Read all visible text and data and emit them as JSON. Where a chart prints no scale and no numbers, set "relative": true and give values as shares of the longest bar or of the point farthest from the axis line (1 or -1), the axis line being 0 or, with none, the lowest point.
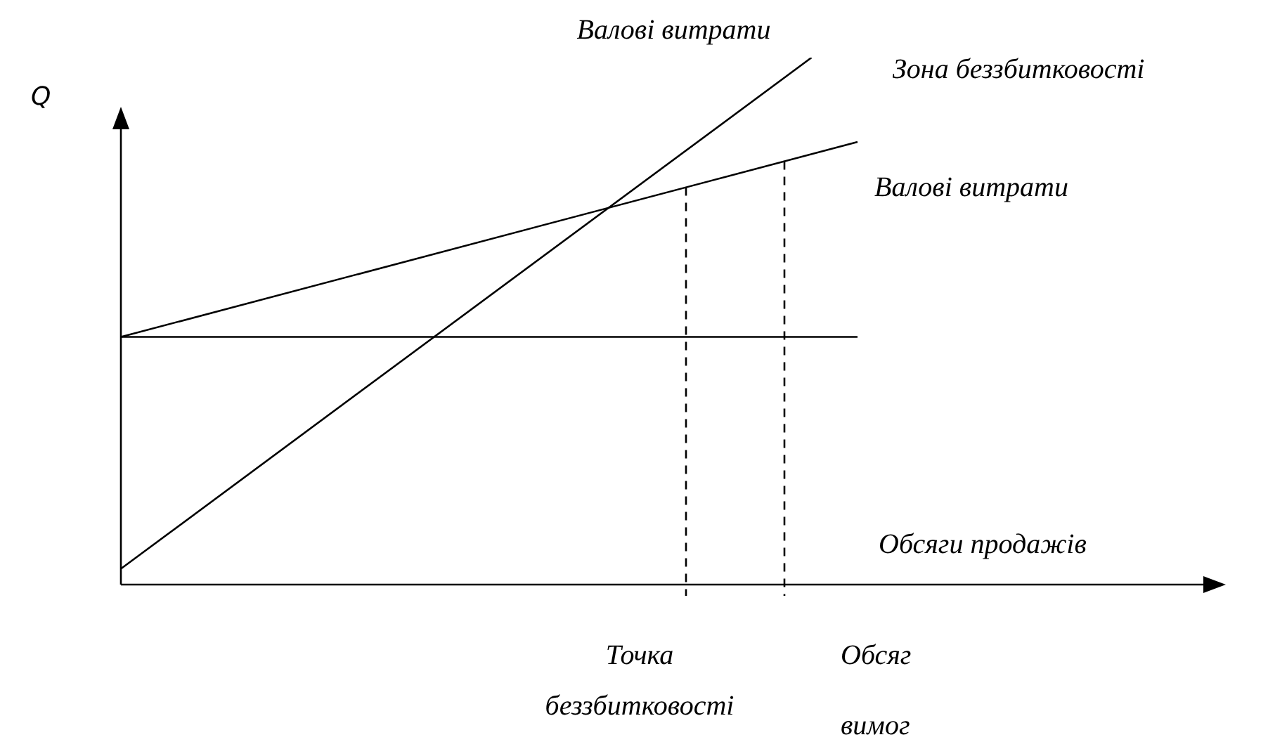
{
  "chart_data": {
    "type": "line",
    "relative": true,
    "xlabel": "Обсяги продажів",
    "ylabel": "Q",
    "tick_labels": false,
    "legend": false,
    "marker": "none",
    "categories": [
      null,
      null,
      null,
      null,
      null,
      null,
      null,
      null,
      null,
      null,
      null,
      null,
      null,
      null,
      null,
      null,
      null,
      null,
      null,
      null,
      null,
      null,
      null,
      null,
      null
    ],
    "annotations": [
      "Зона беззбитковості",
      "Точка беззбитковості",
      "Обсяг вимог"
    ],
    "series": [
      {
        "name": "Валові витрати",
        "color": "#000000",
        "values": [
          0.03,
          null,
          null,
          null,
          null,
          null,
          null,
          null,
          null,
          null,
          null,
          null,
          null,
          null,
          null,
          1,
          null,
          null,
          null,
          null,
          null,
          null,
          null,
          null,
          null
        ]
      },
      {
        "name": "Валові витрати",
        "color": "#000000",
        "values": [
          0.47,
          null,
          null,
          null,
          null,
          null,
          null,
          null,
          null,
          null,
          null,
          null,
          null,
          null,
          null,
          null,
          0.84,
          null,
          null,
          null,
          null,
          null,
          null,
          null,
          null
        ]
      },
      {
        "color": "#000000",
        "values": [
          0.47,
          null,
          null,
          null,
          null,
          null,
          null,
          null,
          null,
          null,
          null,
          null,
          null,
          null,
          null,
          null,
          0.47,
          null,
          null,
          null,
          null,
          null,
          null,
          null,
          null
        ]
      }
    ]
  }
}
